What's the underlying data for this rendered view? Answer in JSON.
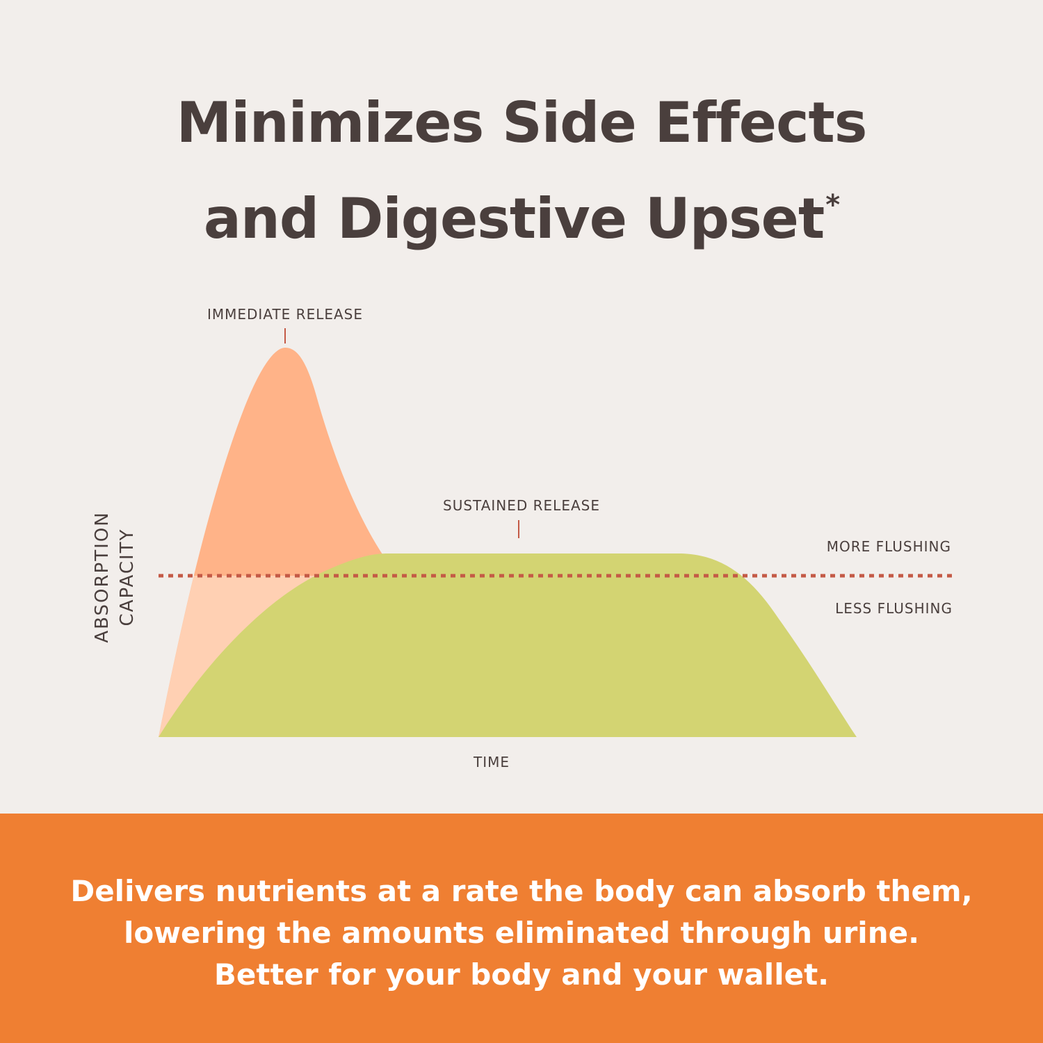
{
  "header": {
    "title_line1": "Minimizes Side Effects",
    "title_line2": "and Digestive Upset",
    "title_asterisk": "*"
  },
  "chart_data": {
    "type": "area",
    "xlabel": "TIME",
    "ylabel_line1": "ABSORPTION",
    "ylabel_line2": "CAPACITY",
    "series": [
      {
        "name": "IMMEDIATE RELEASE",
        "color": "#ffb388"
      },
      {
        "name": "SUSTAINED RELEASE",
        "color": "#d3d472"
      }
    ],
    "threshold": {
      "above_label": "MORE FLUSHING",
      "below_label": "LESS FLUSHING",
      "color": "#c45a46",
      "style": "dotted"
    },
    "marker_color": "#c45a46"
  },
  "footer": {
    "line1": "Delivers nutrients at a rate the body can absorb them,",
    "line2": "lowering the amounts eliminated through urine.",
    "line3": "Better for your body and your wallet.",
    "background": "#ef7f32"
  }
}
